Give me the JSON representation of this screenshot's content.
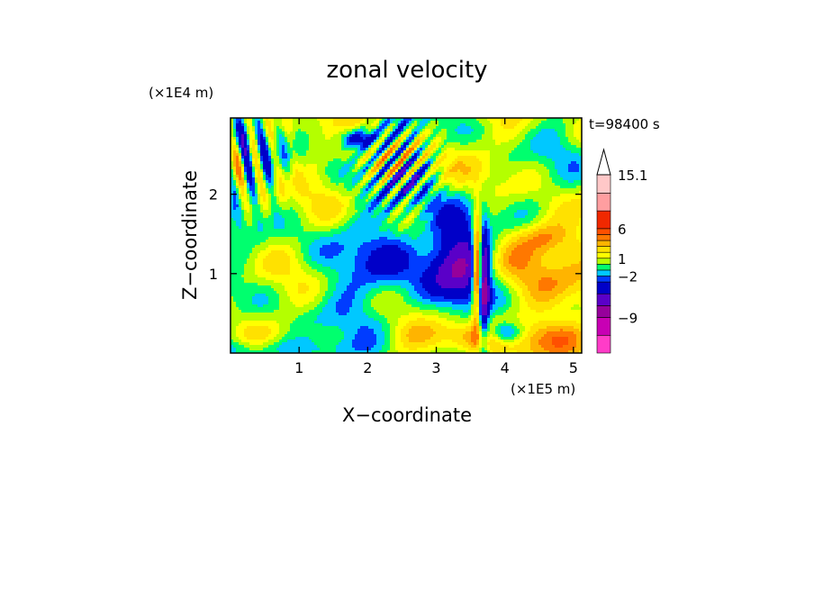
{
  "chart_data": {
    "type": "heatmap",
    "title": "zonal velocity",
    "xlabel": "X−coordinate",
    "ylabel": "Z−coordinate",
    "x_unit": "(×1E5 m)",
    "y_unit": "(×1E4 m)",
    "time_label": "t=98400 s",
    "xlim": [
      0,
      5.12
    ],
    "ylim": [
      0,
      2.96
    ],
    "x_ticks": [
      1,
      2,
      3,
      4,
      5
    ],
    "y_ticks": [
      1,
      2
    ],
    "colorbar": {
      "colors": [
        "#ff3cc8",
        "#c800b4",
        "#96009b",
        "#5a00c8",
        "#0000c8",
        "#003cff",
        "#00c8ff",
        "#00ff6e",
        "#b4ff00",
        "#ffff00",
        "#ffe100",
        "#ffb400",
        "#ff7800",
        "#ff5000",
        "#f02800",
        "#ff9ea0",
        "#ffc8c8"
      ],
      "boundaries": [
        -15,
        -12,
        -9,
        -7,
        -5,
        -3,
        -2,
        -1,
        0,
        1,
        2,
        3,
        4,
        5,
        6,
        9,
        12,
        15.1
      ],
      "labels": [
        {
          "value": 15.1,
          "text": "15.1"
        },
        {
          "value": 6,
          "text": "6"
        },
        {
          "value": 1,
          "text": "1"
        },
        {
          "value": -2,
          "text": "−2"
        },
        {
          "value": -9,
          "text": "−9"
        }
      ]
    }
  }
}
